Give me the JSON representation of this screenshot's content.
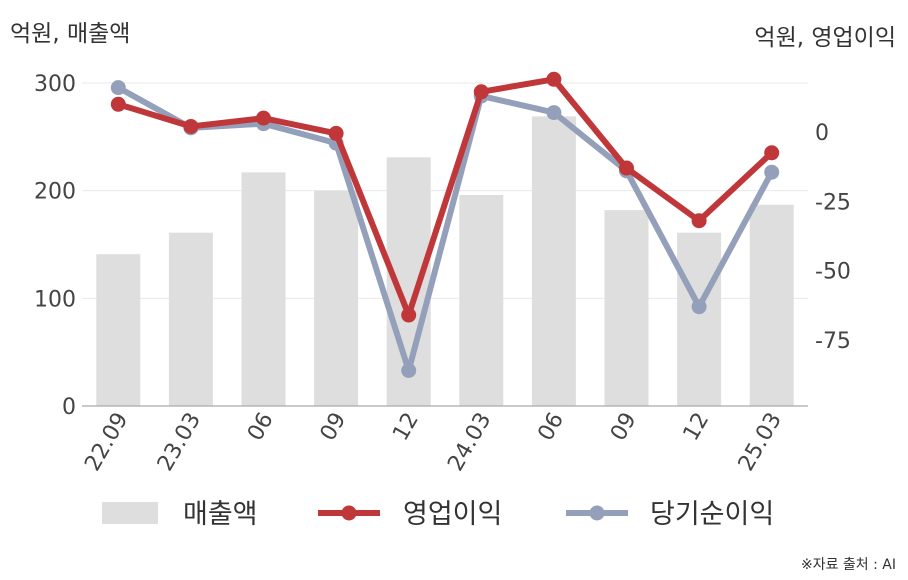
{
  "units": {
    "left": "억원, 매출액",
    "right": "억원, 영업이익"
  },
  "source": "※자료 출처 : AI",
  "chart_data": {
    "type": "bar+line",
    "categories": [
      "22.09",
      "23.03",
      "06",
      "09",
      "12",
      "24.03",
      "06",
      "09",
      "12",
      "25.03"
    ],
    "series": [
      {
        "name": "매출액",
        "type": "bar",
        "axis": "left",
        "color": "#dedede",
        "values": [
          141,
          161,
          217,
          200,
          231,
          196,
          269,
          182,
          161,
          187
        ]
      },
      {
        "name": "영업이익",
        "type": "line",
        "axis": "right",
        "color": "#c0373a",
        "values": [
          10,
          2,
          5,
          -0.5,
          -66,
          14.5,
          19,
          -13,
          -32,
          -7.5
        ]
      },
      {
        "name": "당기순이익",
        "type": "line",
        "axis": "right",
        "color": "#94a0ba",
        "values": [
          16,
          1.5,
          3,
          -4,
          -86,
          13,
          7,
          -14,
          -63,
          -14.5
        ]
      }
    ],
    "left_axis": {
      "ylim": [
        0,
        300
      ],
      "ticks": [
        0,
        100,
        200,
        300
      ]
    },
    "right_axis": {
      "ylim": [
        -100,
        20
      ],
      "ticks": [
        0,
        -25,
        -50,
        -75
      ]
    },
    "grid": true,
    "legend": "bottom"
  }
}
